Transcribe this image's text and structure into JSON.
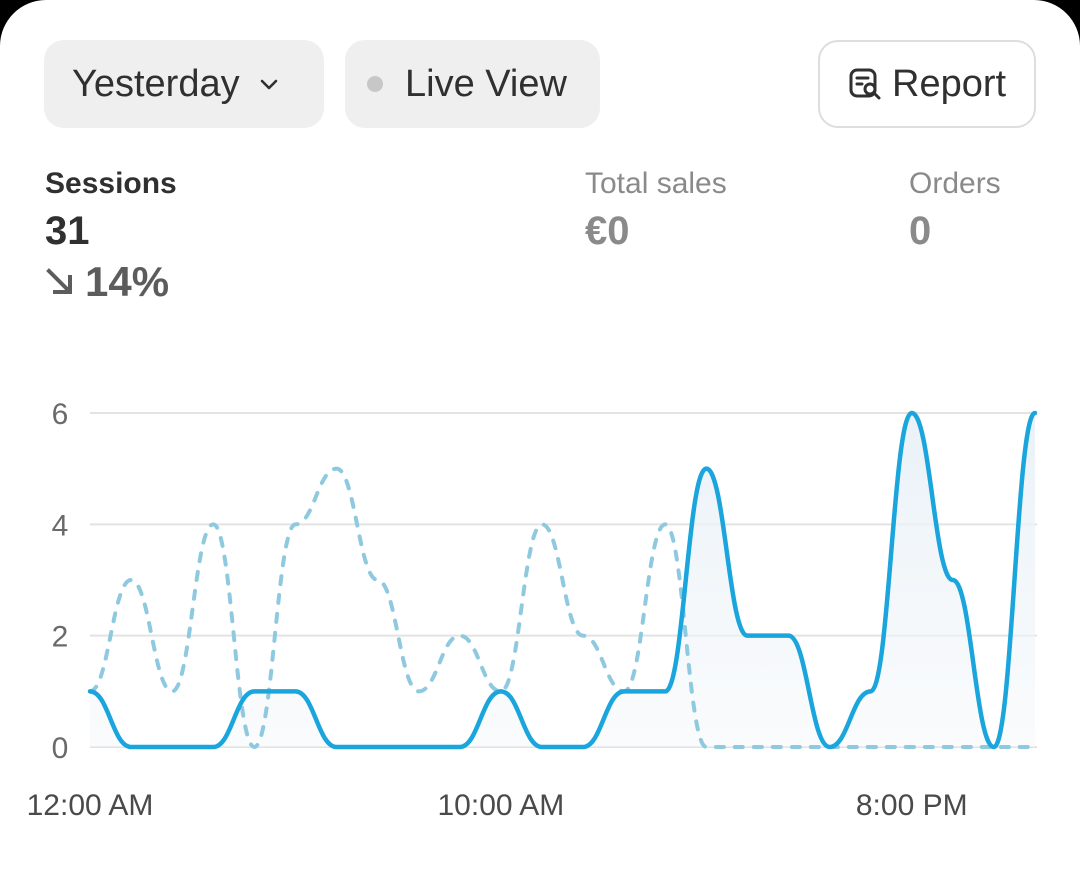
{
  "filters": {
    "date_label": "Yesterday",
    "live_label": "Live View",
    "report_label": "Report"
  },
  "metrics": {
    "sessions": {
      "label": "Sessions",
      "value": "31",
      "change": "14%"
    },
    "total_sales": {
      "label": "Total sales",
      "value": "€0"
    },
    "orders": {
      "label": "Orders",
      "value": "0"
    }
  },
  "colors": {
    "current": "#1aa5dc",
    "previous": "#8fc9df",
    "grid": "#e3e3e3"
  },
  "chart_data": {
    "type": "line",
    "ylim": [
      0,
      6
    ],
    "yticks": [
      "0",
      "2",
      "4",
      "6"
    ],
    "xtick_labels": [
      "12:00 AM",
      "10:00 AM",
      "8:00 PM"
    ],
    "xtick_hours": [
      0,
      10,
      20
    ],
    "x": [
      0,
      1,
      2,
      3,
      4,
      5,
      6,
      7,
      8,
      9,
      10,
      11,
      12,
      13,
      14,
      15,
      16,
      17,
      18,
      19,
      20,
      21,
      22,
      23
    ],
    "series": [
      {
        "key": "current",
        "style": "solid",
        "values": [
          1,
          0,
          0,
          0,
          1,
          1,
          0,
          0,
          0,
          0,
          1,
          0,
          0,
          1,
          1,
          5,
          2,
          2,
          0,
          1,
          6,
          3,
          0,
          6
        ]
      },
      {
        "key": "previous",
        "style": "dashed",
        "values": [
          1,
          3,
          1,
          4,
          0,
          4,
          5,
          3,
          1,
          2,
          1,
          4,
          2,
          1,
          4,
          0,
          0,
          0,
          0,
          0,
          0,
          0,
          0,
          0
        ]
      }
    ]
  }
}
